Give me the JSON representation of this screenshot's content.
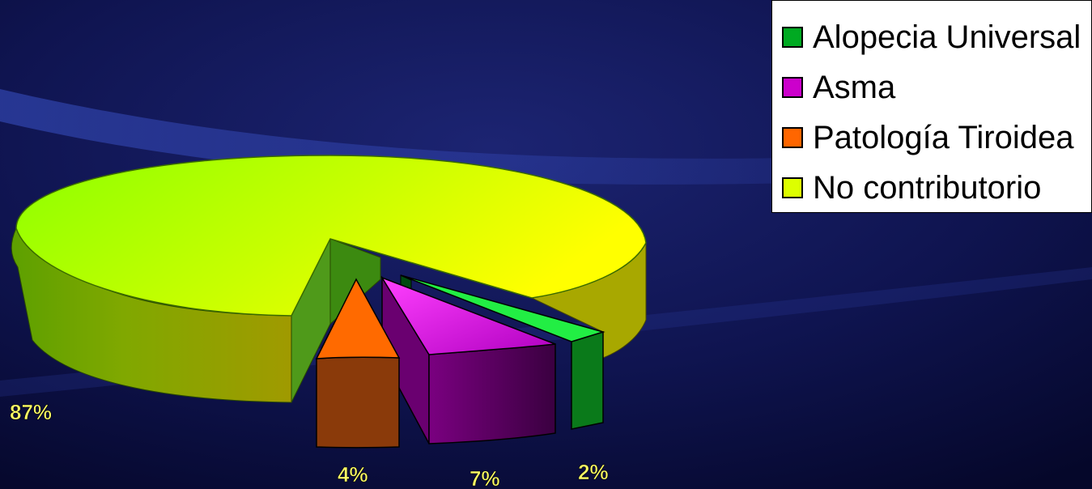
{
  "chart_data": {
    "type": "pie",
    "title": "",
    "slices": [
      {
        "label": "No contributorio",
        "value": 87,
        "value_label": "87%",
        "color": "#c6ff00"
      },
      {
        "label": "Patología Tiroidea",
        "value": 4,
        "value_label": "4%",
        "color": "#ff6a00"
      },
      {
        "label": "Asma",
        "value": 7,
        "value_label": "7%",
        "color": "#e000e8"
      },
      {
        "label": "Alopecia Universal",
        "value": 2,
        "value_label": "2%",
        "color": "#00cc33"
      }
    ],
    "exploded": [
      "Patología Tiroidea",
      "Asma",
      "Alopecia Universal"
    ],
    "style": "3d",
    "legend_position": "top-right",
    "label_color": "#ffff66"
  },
  "legend": {
    "items": [
      {
        "label": "Alopecia Universal",
        "color": "#00aa22"
      },
      {
        "label": "Asma",
        "color": "#cc00cc"
      },
      {
        "label": "Patología Tiroidea",
        "color": "#ff6600"
      },
      {
        "label": "No contributorio",
        "color": "#ddff00"
      }
    ]
  }
}
